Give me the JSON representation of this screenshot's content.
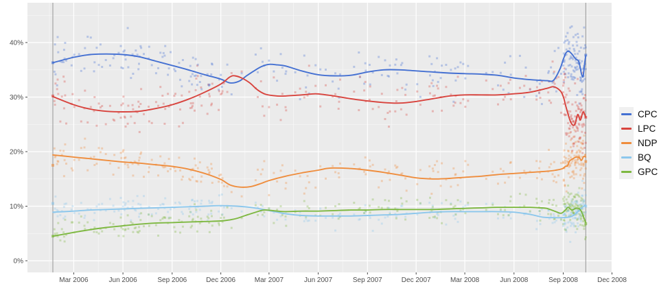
{
  "chart_data": {
    "type": "scatter",
    "title": "",
    "xlabel": "",
    "ylabel": "",
    "x_unit": "days since first data point (2006 federal election day)",
    "y_unit": "percent support",
    "x_axis": {
      "ticks": [
        {
          "label": "Mar 2006",
          "day": 39
        },
        {
          "label": "Jun 2006",
          "day": 131
        },
        {
          "label": "Sep 2006",
          "day": 223
        },
        {
          "label": "Dec 2006",
          "day": 314
        },
        {
          "label": "Mar 2007",
          "day": 404
        },
        {
          "label": "Jun 2007",
          "day": 496
        },
        {
          "label": "Sep 2007",
          "day": 588
        },
        {
          "label": "Dec 2007",
          "day": 679
        },
        {
          "label": "Mar 2008",
          "day": 770
        },
        {
          "label": "Jun 2008",
          "day": 862
        },
        {
          "label": "Sep 2008",
          "day": 954
        },
        {
          "label": "Dec 2008",
          "day": 1045
        }
      ]
    },
    "y_axis": {
      "ticks": [
        {
          "label": "0%",
          "value": 0
        },
        {
          "label": "10%",
          "value": 10
        },
        {
          "label": "20%",
          "value": 20
        },
        {
          "label": "30%",
          "value": 30
        },
        {
          "label": "40%",
          "value": 40
        }
      ],
      "minor_values": [
        5,
        15,
        25,
        35,
        45
      ],
      "range": [
        -2.1,
        47.3
      ]
    },
    "reference_lines_days": [
      0,
      996
    ],
    "grid": true,
    "legend_position": "right",
    "series": [
      {
        "name": "CPC",
        "color": "#4470d2",
        "trend": [
          [
            0,
            36.3
          ],
          [
            39,
            37.3
          ],
          [
            70,
            37.8
          ],
          [
            100,
            37.9
          ],
          [
            131,
            37.8
          ],
          [
            161,
            37.4
          ],
          [
            192,
            36.6
          ],
          [
            223,
            35.8
          ],
          [
            253,
            35.0
          ],
          [
            284,
            34.1
          ],
          [
            314,
            33.3
          ],
          [
            331,
            32.6
          ],
          [
            348,
            32.9
          ],
          [
            362,
            33.9
          ],
          [
            376,
            34.8
          ],
          [
            390,
            35.6
          ],
          [
            404,
            36.0
          ],
          [
            420,
            35.9
          ],
          [
            435,
            35.7
          ],
          [
            465,
            34.8
          ],
          [
            496,
            34.1
          ],
          [
            526,
            33.9
          ],
          [
            557,
            34.0
          ],
          [
            588,
            34.6
          ],
          [
            618,
            35.0
          ],
          [
            649,
            35.0
          ],
          [
            679,
            34.8
          ],
          [
            710,
            34.6
          ],
          [
            741,
            34.4
          ],
          [
            770,
            34.3
          ],
          [
            801,
            34.2
          ],
          [
            831,
            34.0
          ],
          [
            862,
            33.5
          ],
          [
            892,
            33.2
          ],
          [
            923,
            33.0
          ],
          [
            936,
            33.1
          ],
          [
            948,
            35.2
          ],
          [
            954,
            36.9
          ],
          [
            959,
            38.1
          ],
          [
            964,
            38.4
          ],
          [
            970,
            37.9
          ],
          [
            977,
            37.0
          ],
          [
            983,
            36.5
          ],
          [
            988,
            34.3
          ],
          [
            991,
            33.8
          ],
          [
            994,
            36.2
          ],
          [
            996,
            37.6
          ]
        ]
      },
      {
        "name": "LPC",
        "color": "#d8433d",
        "trend": [
          [
            0,
            30.1
          ],
          [
            39,
            28.6
          ],
          [
            70,
            27.8
          ],
          [
            100,
            27.4
          ],
          [
            131,
            27.3
          ],
          [
            161,
            27.4
          ],
          [
            192,
            27.9
          ],
          [
            223,
            28.6
          ],
          [
            253,
            29.6
          ],
          [
            284,
            30.9
          ],
          [
            314,
            32.4
          ],
          [
            331,
            33.7
          ],
          [
            340,
            33.9
          ],
          [
            353,
            33.5
          ],
          [
            368,
            32.6
          ],
          [
            383,
            31.3
          ],
          [
            398,
            30.5
          ],
          [
            420,
            30.2
          ],
          [
            435,
            30.2
          ],
          [
            465,
            30.4
          ],
          [
            491,
            30.6
          ],
          [
            511,
            30.4
          ],
          [
            526,
            30.2
          ],
          [
            557,
            29.7
          ],
          [
            588,
            29.3
          ],
          [
            618,
            29.0
          ],
          [
            649,
            28.9
          ],
          [
            679,
            29.2
          ],
          [
            710,
            29.7
          ],
          [
            741,
            30.2
          ],
          [
            770,
            30.4
          ],
          [
            801,
            30.4
          ],
          [
            831,
            30.4
          ],
          [
            862,
            30.6
          ],
          [
            892,
            30.9
          ],
          [
            923,
            31.6
          ],
          [
            936,
            31.9
          ],
          [
            948,
            31.2
          ],
          [
            954,
            30.1
          ],
          [
            960,
            27.9
          ],
          [
            968,
            25.4
          ],
          [
            975,
            24.9
          ],
          [
            981,
            26.8
          ],
          [
            986,
            25.8
          ],
          [
            991,
            27.3
          ],
          [
            996,
            26.3
          ]
        ]
      },
      {
        "name": "NDP",
        "color": "#ef8d3d",
        "trend": [
          [
            0,
            19.4
          ],
          [
            39,
            19.0
          ],
          [
            70,
            18.7
          ],
          [
            100,
            18.4
          ],
          [
            131,
            18.1
          ],
          [
            161,
            17.9
          ],
          [
            192,
            17.6
          ],
          [
            223,
            17.3
          ],
          [
            253,
            16.8
          ],
          [
            284,
            16.0
          ],
          [
            314,
            14.9
          ],
          [
            331,
            13.9
          ],
          [
            350,
            13.5
          ],
          [
            370,
            13.6
          ],
          [
            390,
            14.2
          ],
          [
            404,
            14.7
          ],
          [
            435,
            15.5
          ],
          [
            465,
            16.1
          ],
          [
            496,
            16.6
          ],
          [
            511,
            16.9
          ],
          [
            526,
            17.0
          ],
          [
            557,
            16.9
          ],
          [
            588,
            16.6
          ],
          [
            618,
            16.2
          ],
          [
            649,
            15.7
          ],
          [
            679,
            15.2
          ],
          [
            710,
            15.0
          ],
          [
            741,
            15.1
          ],
          [
            770,
            15.3
          ],
          [
            801,
            15.5
          ],
          [
            831,
            15.8
          ],
          [
            862,
            16.0
          ],
          [
            892,
            16.2
          ],
          [
            923,
            16.4
          ],
          [
            940,
            16.6
          ],
          [
            953,
            16.9
          ],
          [
            958,
            17.3
          ],
          [
            962,
            17.4
          ],
          [
            966,
            18.3
          ],
          [
            972,
            18.7
          ],
          [
            978,
            19.0
          ],
          [
            984,
            18.9
          ],
          [
            988,
            18.4
          ],
          [
            992,
            19.1
          ],
          [
            996,
            19.0
          ]
        ]
      },
      {
        "name": "BQ",
        "color": "#8cc7ec",
        "trend": [
          [
            0,
            8.9
          ],
          [
            39,
            9.1
          ],
          [
            70,
            9.3
          ],
          [
            100,
            9.4
          ],
          [
            131,
            9.5
          ],
          [
            161,
            9.6
          ],
          [
            192,
            9.7
          ],
          [
            223,
            9.8
          ],
          [
            253,
            9.9
          ],
          [
            284,
            10.0
          ],
          [
            314,
            10.1
          ],
          [
            345,
            10.0
          ],
          [
            376,
            9.7
          ],
          [
            404,
            9.2
          ],
          [
            420,
            8.9
          ],
          [
            435,
            8.6
          ],
          [
            465,
            8.3
          ],
          [
            496,
            8.2
          ],
          [
            526,
            8.2
          ],
          [
            557,
            8.2
          ],
          [
            588,
            8.3
          ],
          [
            618,
            8.4
          ],
          [
            649,
            8.5
          ],
          [
            679,
            8.7
          ],
          [
            710,
            8.9
          ],
          [
            741,
            9.0
          ],
          [
            770,
            9.0
          ],
          [
            801,
            9.0
          ],
          [
            831,
            9.0
          ],
          [
            862,
            8.9
          ],
          [
            892,
            8.5
          ],
          [
            915,
            8.0
          ],
          [
            935,
            7.9
          ],
          [
            953,
            7.9
          ],
          [
            965,
            8.0
          ],
          [
            973,
            8.3
          ],
          [
            980,
            8.9
          ],
          [
            986,
            9.4
          ],
          [
            990,
            9.8
          ],
          [
            994,
            10.1
          ],
          [
            996,
            10.1
          ]
        ]
      },
      {
        "name": "GPC",
        "color": "#7eb841",
        "trend": [
          [
            0,
            4.5
          ],
          [
            39,
            5.2
          ],
          [
            70,
            5.7
          ],
          [
            100,
            6.1
          ],
          [
            131,
            6.4
          ],
          [
            161,
            6.7
          ],
          [
            192,
            6.9
          ],
          [
            223,
            7.0
          ],
          [
            253,
            7.1
          ],
          [
            284,
            7.2
          ],
          [
            314,
            7.3
          ],
          [
            331,
            7.5
          ],
          [
            345,
            7.8
          ],
          [
            360,
            8.3
          ],
          [
            376,
            8.8
          ],
          [
            395,
            9.3
          ],
          [
            420,
            9.1
          ],
          [
            435,
            9.0
          ],
          [
            465,
            9.1
          ],
          [
            496,
            9.1
          ],
          [
            526,
            9.2
          ],
          [
            557,
            9.3
          ],
          [
            588,
            9.3
          ],
          [
            618,
            9.4
          ],
          [
            649,
            9.4
          ],
          [
            679,
            9.4
          ],
          [
            710,
            9.4
          ],
          [
            741,
            9.5
          ],
          [
            770,
            9.6
          ],
          [
            801,
            9.7
          ],
          [
            831,
            9.8
          ],
          [
            862,
            9.8
          ],
          [
            892,
            9.8
          ],
          [
            910,
            9.7
          ],
          [
            923,
            9.6
          ],
          [
            940,
            9.0
          ],
          [
            950,
            8.7
          ],
          [
            958,
            9.3
          ],
          [
            963,
            9.8
          ],
          [
            970,
            9.3
          ],
          [
            977,
            9.6
          ],
          [
            983,
            9.6
          ],
          [
            988,
            9.0
          ],
          [
            992,
            8.0
          ],
          [
            996,
            7.0
          ]
        ]
      }
    ],
    "election_result_points": {
      "day0": {
        "CPC": 36.3,
        "LPC": 30.2,
        "NDP": 17.5,
        "BQ": 10.5,
        "GPC": 4.5
      },
      "day996": {
        "CPC": 37.7,
        "LPC": 26.3,
        "NDP": 18.2,
        "BQ": 10.0,
        "GPC": 6.8
      }
    },
    "scatter_style": {
      "note": "individual poll results drawn as small semi-transparent squares around each trend line; dense daily cluster during the Sep-Oct 2008 campaign",
      "seed": 20081014,
      "point_size": 3,
      "point_opacity": 0.32,
      "spread_pct": {
        "CPC": 2.0,
        "LPC": 2.0,
        "NDP": 1.55,
        "BQ": 1.15,
        "GPC": 1.25
      },
      "campaign_start_day": 954,
      "campaign_spread_factor": 1.4,
      "density": {
        "early": 0.26,
        "mid": 0.17,
        "pre_campaign": 0.26,
        "campaign_draws": 3,
        "campaign_p": 0.72
      }
    },
    "colors": {
      "panel_background": "#ebebeb",
      "major_grid": "#ffffff",
      "minor_grid": "#f7f7f7",
      "reference_line": "#949494",
      "axis_text": "#4d4d4d",
      "tick_mark": "#333333"
    }
  },
  "legend": {
    "items": [
      {
        "label": "CPC",
        "color": "#4470d2"
      },
      {
        "label": "LPC",
        "color": "#d8433d"
      },
      {
        "label": "NDP",
        "color": "#ef8d3d"
      },
      {
        "label": "BQ",
        "color": "#8cc7ec"
      },
      {
        "label": "GPC",
        "color": "#7eb841"
      }
    ]
  }
}
